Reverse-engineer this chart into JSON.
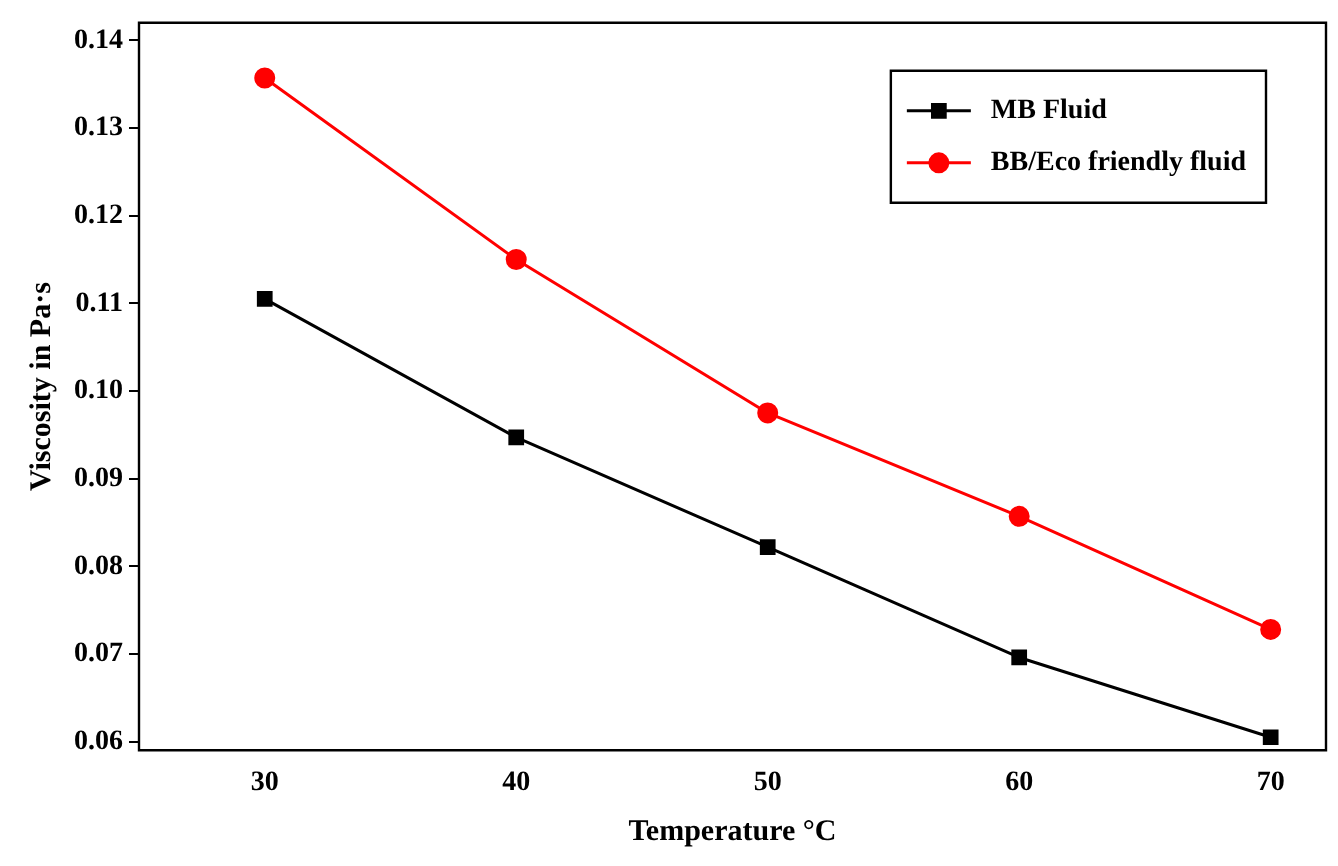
{
  "chart_data": {
    "type": "line",
    "xlabel": "Temperature °C",
    "ylabel": "Viscosity in Pa·s",
    "x": [
      30,
      40,
      50,
      60,
      70
    ],
    "series": [
      {
        "name": "MB Fluid",
        "color": "#000000",
        "marker": "square",
        "values": [
          0.1105,
          0.0947,
          0.0822,
          0.0696,
          0.0605
        ]
      },
      {
        "name": "BB/Eco friendly fluid",
        "color": "#ff0000",
        "marker": "circle",
        "values": [
          0.1357,
          0.115,
          0.0975,
          0.0857,
          0.0728
        ]
      }
    ],
    "xlim": [
      25,
      72.2
    ],
    "xticks": [
      30,
      40,
      50,
      60,
      70
    ],
    "ylim": [
      0.059,
      0.142
    ],
    "yticks": [
      {
        "value": 0.06,
        "label": "0.06"
      },
      {
        "value": 0.07,
        "label": "0.07"
      },
      {
        "value": 0.08,
        "label": "0.08"
      },
      {
        "value": 0.09,
        "label": "0.09"
      },
      {
        "value": 0.1,
        "label": "0.10"
      },
      {
        "value": 0.11,
        "label": "0.11"
      },
      {
        "value": 0.12,
        "label": "0.12"
      },
      {
        "value": 0.13,
        "label": "0.13"
      },
      {
        "value": 0.14,
        "label": "0.14"
      }
    ],
    "grid": false,
    "legend": "top right",
    "line_style": "solid"
  }
}
